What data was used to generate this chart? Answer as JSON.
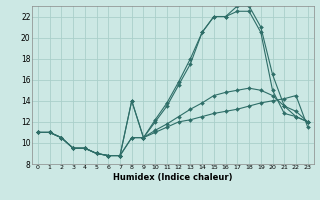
{
  "xlabel": "Humidex (Indice chaleur)",
  "background_color": "#cce8e4",
  "grid_color": "#aacfca",
  "line_color": "#2e6e68",
  "xlim": [
    -0.5,
    23.5
  ],
  "ylim": [
    8,
    23
  ],
  "xticks": [
    0,
    1,
    2,
    3,
    4,
    5,
    6,
    7,
    8,
    9,
    10,
    11,
    12,
    13,
    14,
    15,
    16,
    17,
    18,
    19,
    20,
    21,
    22,
    23
  ],
  "yticks": [
    8,
    10,
    12,
    14,
    16,
    18,
    20,
    22
  ],
  "lines": [
    {
      "x": [
        0,
        1,
        2,
        3,
        4,
        5,
        6,
        7,
        8,
        9,
        10,
        11,
        12,
        13,
        14,
        15,
        16,
        17,
        18,
        19,
        20,
        21,
        22,
        23
      ],
      "y": [
        11,
        11,
        10.5,
        9.5,
        9.5,
        9.0,
        8.8,
        8.8,
        10.5,
        10.5,
        11.0,
        11.5,
        12.0,
        12.2,
        12.5,
        12.8,
        13.0,
        13.2,
        13.5,
        13.8,
        14.0,
        14.2,
        14.5,
        11.5
      ]
    },
    {
      "x": [
        0,
        1,
        2,
        3,
        4,
        5,
        6,
        7,
        8,
        9,
        10,
        11,
        12,
        13,
        14,
        15,
        16,
        17,
        18,
        19,
        20,
        21,
        22,
        23
      ],
      "y": [
        11,
        11,
        10.5,
        9.5,
        9.5,
        9.0,
        8.8,
        8.8,
        10.5,
        10.5,
        11.2,
        11.8,
        12.5,
        13.2,
        13.8,
        14.5,
        14.8,
        15.0,
        15.2,
        15.0,
        14.5,
        13.5,
        13.0,
        12.0
      ]
    },
    {
      "x": [
        0,
        1,
        2,
        3,
        4,
        5,
        6,
        7,
        8,
        9,
        10,
        11,
        12,
        13,
        14,
        15,
        16,
        17,
        18,
        19,
        20,
        21,
        22,
        23
      ],
      "y": [
        11,
        11,
        10.5,
        9.5,
        9.5,
        9.0,
        8.8,
        8.8,
        14.0,
        10.5,
        12.0,
        13.5,
        15.5,
        17.5,
        20.5,
        22.0,
        22.0,
        22.5,
        22.5,
        20.5,
        15.0,
        12.8,
        12.5,
        12.0
      ]
    },
    {
      "x": [
        0,
        1,
        2,
        3,
        4,
        5,
        6,
        7,
        8,
        9,
        10,
        11,
        12,
        13,
        14,
        15,
        16,
        17,
        18,
        19,
        20,
        21,
        22,
        23
      ],
      "y": [
        11,
        11,
        10.5,
        9.5,
        9.5,
        9.0,
        8.8,
        8.8,
        14.0,
        10.5,
        12.2,
        13.8,
        15.8,
        18.0,
        20.5,
        22.0,
        22.0,
        23.0,
        23.0,
        21.0,
        16.5,
        13.5,
        12.5,
        12.0
      ]
    }
  ]
}
